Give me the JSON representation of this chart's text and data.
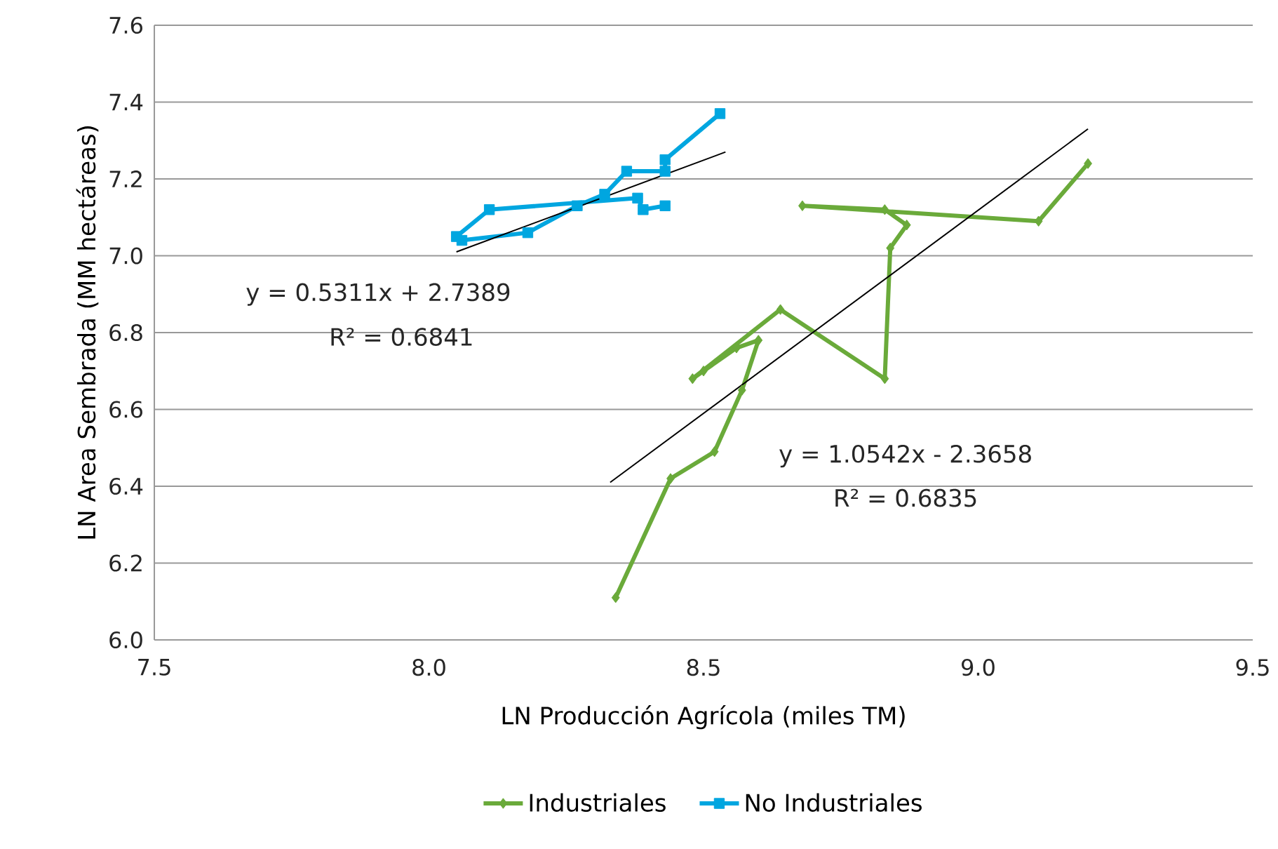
{
  "chart_data": {
    "type": "line",
    "xlabel": "LN Producción Agrícola (miles TM)",
    "ylabel": "LN Area Sembrada (MM hectáreas)",
    "xlim": [
      7.5,
      9.5
    ],
    "xticks": [
      {
        "value": 7.5,
        "label": "7.5"
      },
      {
        "value": 8,
        "label": "8.0"
      },
      {
        "value": 8.5,
        "label": "8.5"
      },
      {
        "value": 9,
        "label": "9.0"
      },
      {
        "value": 9.5,
        "label": "9.5"
      }
    ],
    "ylim": [
      6.0,
      7.6
    ],
    "yticks": [
      {
        "value": 6,
        "label": "6.0"
      },
      {
        "value": 6.2,
        "label": "6.2"
      },
      {
        "value": 6.4,
        "label": "6.4"
      },
      {
        "value": 6.6,
        "label": "6.6"
      },
      {
        "value": 6.8,
        "label": "6.8"
      },
      {
        "value": 7,
        "label": "7.0"
      },
      {
        "value": 7.2,
        "label": "7.2"
      },
      {
        "value": 7.4,
        "label": "7.4"
      },
      {
        "value": 7.6,
        "label": "7.6"
      }
    ],
    "grid": "y",
    "legend": "bottom",
    "series": [
      {
        "name": "Industriales",
        "color": "#6aaa3a",
        "marker": "diamond",
        "x": [
          8.34,
          8.44,
          8.52,
          8.57,
          8.6,
          8.56,
          8.5,
          8.48,
          8.64,
          8.83,
          8.84,
          8.87,
          8.83,
          8.68,
          9.11,
          9.2
        ],
        "values": [
          6.11,
          6.42,
          6.49,
          6.65,
          6.78,
          6.76,
          6.7,
          6.68,
          6.86,
          6.68,
          7.02,
          7.08,
          7.12,
          7.13,
          7.09,
          7.24
        ]
      },
      {
        "name": "No Industriales",
        "color": "#00a6e0",
        "marker": "square",
        "x": [
          8.53,
          8.43,
          8.43,
          8.36,
          8.32,
          8.27,
          8.18,
          8.06,
          8.05,
          8.11,
          8.38,
          8.39,
          8.43
        ],
        "values": [
          7.37,
          7.25,
          7.22,
          7.22,
          7.16,
          7.13,
          7.06,
          7.04,
          7.05,
          7.12,
          7.15,
          7.12,
          7.13
        ]
      },
      {
        "color": "#000000",
        "marker": "none",
        "x": [
          8.05,
          8.54
        ],
        "values": [
          7.01,
          7.27
        ]
      },
      {
        "color": "#000000",
        "marker": "none",
        "x": [
          8.33,
          9.2
        ],
        "values": [
          6.41,
          7.33
        ]
      }
    ],
    "annotations": [
      "y = 0.5311x + 2.7389",
      "R² = 0.6841",
      "y = 1.0542x - 2.3658",
      "R² = 0.6835"
    ]
  }
}
